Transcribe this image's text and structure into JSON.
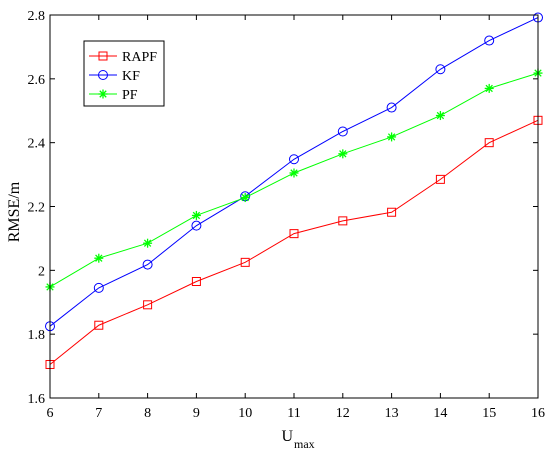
{
  "chart_data": {
    "type": "line",
    "title": "",
    "xlabel": "U",
    "xlabel_subscript": "max",
    "ylabel": "RMSE/m",
    "x": [
      6,
      7,
      8,
      9,
      10,
      11,
      12,
      13,
      14,
      15,
      16
    ],
    "xlim": [
      6,
      16
    ],
    "ylim": [
      1.6,
      2.8
    ],
    "xticks": [
      "6",
      "7",
      "8",
      "9",
      "10",
      "11",
      "12",
      "13",
      "14",
      "15",
      "16"
    ],
    "yticks": [
      "1.6",
      "1.8",
      "2",
      "2.2",
      "2.4",
      "2.6",
      "2.8"
    ],
    "grid": false,
    "legend_position": "top-left",
    "series": [
      {
        "name": "RAPF",
        "color": "#ff0000",
        "marker": "square",
        "values": [
          1.705,
          1.828,
          1.892,
          1.965,
          2.025,
          2.115,
          2.155,
          2.182,
          2.285,
          2.4,
          2.47
        ]
      },
      {
        "name": "KF",
        "color": "#0000ff",
        "marker": "circle",
        "values": [
          1.825,
          1.945,
          2.018,
          2.14,
          2.232,
          2.348,
          2.435,
          2.51,
          2.63,
          2.72,
          2.792
        ]
      },
      {
        "name": "PF",
        "color": "#00ff00",
        "marker": "star",
        "values": [
          1.948,
          2.038,
          2.085,
          2.172,
          2.228,
          2.305,
          2.365,
          2.418,
          2.485,
          2.57,
          2.618
        ]
      }
    ]
  }
}
